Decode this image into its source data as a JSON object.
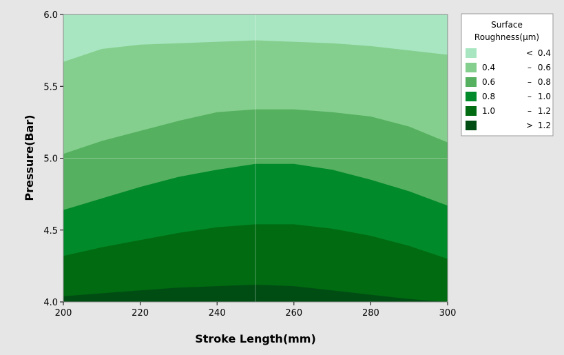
{
  "chart_data": {
    "type": "contour",
    "xlabel": "Stroke Length(mm)",
    "ylabel": "Pressure(Bar)",
    "xlim": [
      200,
      300
    ],
    "ylim": [
      4.0,
      6.0
    ],
    "xticks": [
      "200",
      "220",
      "240",
      "260",
      "280",
      "300"
    ],
    "yticks": [
      "4.0",
      "4.5",
      "5.0",
      "5.5",
      "6.0"
    ],
    "grid": true,
    "legend": {
      "title_line1": "Surface",
      "title_line2": "Roughness(µm)",
      "placement": "right",
      "entries": [
        {
          "low": "",
          "op": "<",
          "high": "0.4",
          "color": "#a8e6c1"
        },
        {
          "low": "0.4",
          "op": "–",
          "high": "0.6",
          "color": "#84cf8e"
        },
        {
          "low": "0.6",
          "op": "–",
          "high": "0.8",
          "color": "#55b05f"
        },
        {
          "low": "0.8",
          "op": "–",
          "high": "1.0",
          "color": "#008a2a"
        },
        {
          "low": "1.0",
          "op": "–",
          "high": "1.2",
          "color": "#006b10"
        },
        {
          "low": "",
          "op": ">",
          "high": "1.2",
          "color": "#004d14"
        }
      ]
    },
    "contour_x": [
      200,
      210,
      220,
      230,
      240,
      250,
      260,
      270,
      280,
      290,
      300
    ],
    "boundaries": [
      {
        "level": "0.4",
        "y": [
          5.67,
          5.76,
          5.79,
          5.8,
          5.81,
          5.82,
          5.81,
          5.8,
          5.78,
          5.75,
          5.72
        ]
      },
      {
        "level": "0.6",
        "y": [
          5.03,
          5.12,
          5.19,
          5.26,
          5.32,
          5.34,
          5.34,
          5.32,
          5.29,
          5.22,
          5.11
        ]
      },
      {
        "level": "0.8",
        "y": [
          4.64,
          4.72,
          4.8,
          4.87,
          4.92,
          4.96,
          4.96,
          4.92,
          4.85,
          4.77,
          4.67
        ]
      },
      {
        "level": "1.0",
        "y": [
          4.32,
          4.38,
          4.43,
          4.48,
          4.52,
          4.54,
          4.54,
          4.51,
          4.46,
          4.39,
          4.3
        ]
      },
      {
        "level": "1.2",
        "y": [
          4.04,
          4.06,
          4.08,
          4.1,
          4.11,
          4.12,
          4.11,
          4.08,
          4.05,
          4.02,
          4.0
        ]
      }
    ]
  }
}
